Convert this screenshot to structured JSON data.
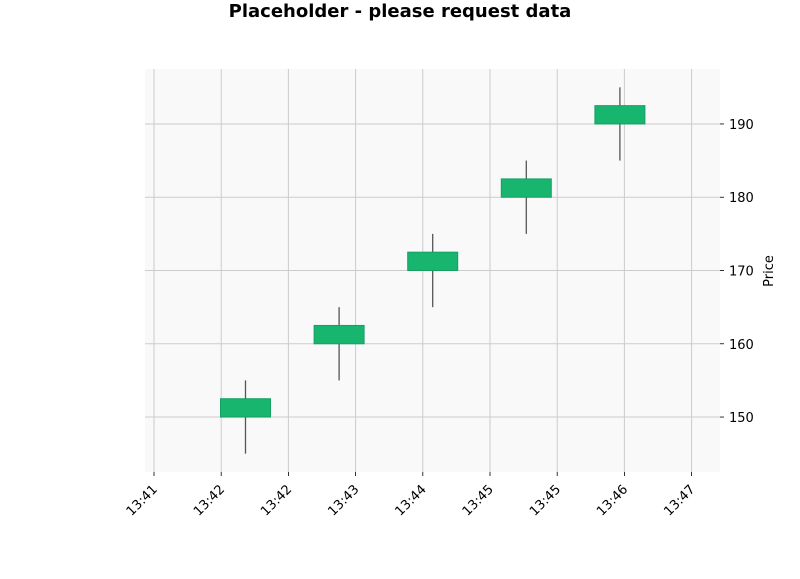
{
  "chart_data": {
    "type": "candlestick",
    "title": "Placeholder - please request data",
    "xlabel": "",
    "ylabel": "Price",
    "x_tick_labels": [
      "13:41",
      "13:42",
      "13:42",
      "13:43",
      "13:44",
      "13:45",
      "13:45",
      "13:46",
      "13:47"
    ],
    "y_ticks": [
      150,
      160,
      170,
      180,
      190
    ],
    "ylim": [
      142.5,
      197.5
    ],
    "grid": true,
    "y_axis_side": "right",
    "candles": [
      {
        "open": 150,
        "high": 155,
        "low": 145,
        "close": 152.5
      },
      {
        "open": 160,
        "high": 165,
        "low": 155,
        "close": 162.5
      },
      {
        "open": 170,
        "high": 175,
        "low": 165,
        "close": 172.5
      },
      {
        "open": 180,
        "high": 185,
        "low": 175,
        "close": 182.5
      },
      {
        "open": 190,
        "high": 195,
        "low": 185,
        "close": 192.5
      }
    ],
    "colors": {
      "up_fill": "#18b56f",
      "up_edge": "#16a064",
      "wick": "#555555",
      "grid": "#cccccc",
      "plot_bg": "#f9f9f9"
    }
  }
}
